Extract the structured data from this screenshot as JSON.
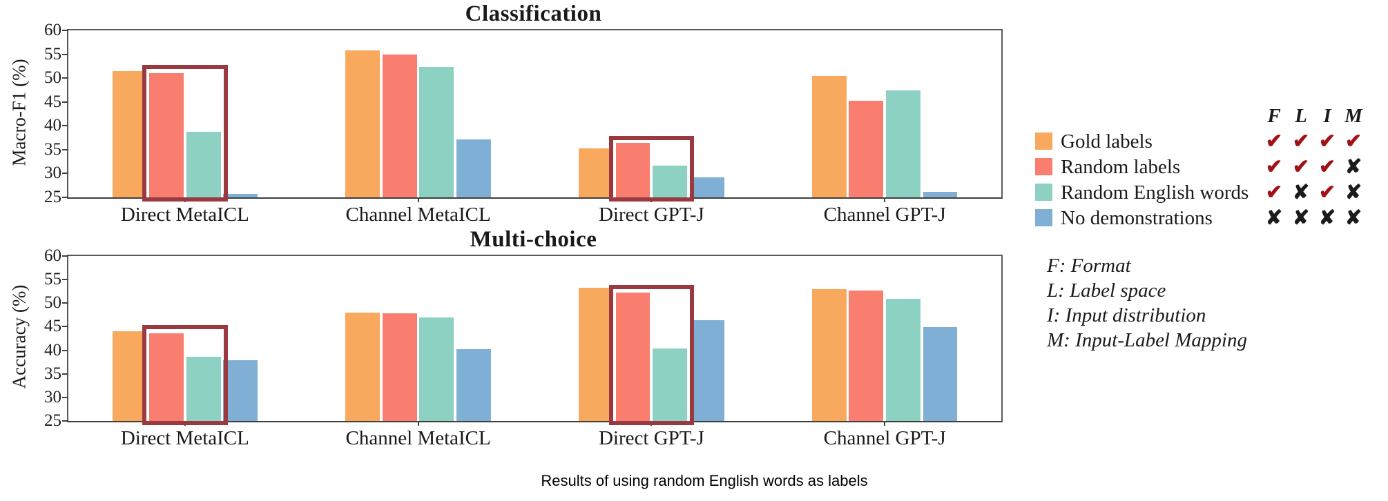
{
  "figure": {
    "caption": "Results of using random English words as labels"
  },
  "legend": {
    "columns": [
      "F",
      "L",
      "I",
      "M"
    ],
    "items": [
      {
        "label": "Gold labels",
        "color": "#F8A95E",
        "marks": [
          "check",
          "check",
          "check",
          "check"
        ]
      },
      {
        "label": "Random labels",
        "color": "#F97E70",
        "marks": [
          "check",
          "check",
          "check",
          "cross"
        ]
      },
      {
        "label": "Random English words",
        "color": "#8DD1C2",
        "marks": [
          "check",
          "cross",
          "check",
          "cross"
        ]
      },
      {
        "label": "No demonstrations",
        "color": "#7FAFD5",
        "marks": [
          "cross",
          "cross",
          "cross",
          "cross"
        ]
      }
    ],
    "check_glyph": "✔",
    "cross_glyph": "✘",
    "check_color": "#A21115",
    "cross_color": "#1b1b1b",
    "notes": [
      "F: Format",
      "L: Label space",
      "I: Input distribution",
      "M: Input-Label Mapping"
    ]
  },
  "highlight_color": "#9A3940",
  "chart_data": [
    {
      "type": "bar",
      "title": "Classification",
      "ylabel": "Macro-F1 (%)",
      "ylim": [
        25,
        60
      ],
      "yticks": [
        60,
        55,
        50,
        45,
        40,
        35,
        30,
        25
      ],
      "grid": false,
      "categories": [
        "Direct MetaICL",
        "Channel MetaICL",
        "Direct GPT-J",
        "Channel GPT-J"
      ],
      "series": [
        {
          "name": "Gold labels",
          "color": "#F8A95E",
          "values": [
            51.5,
            55.8,
            35.2,
            50.5
          ]
        },
        {
          "name": "Random labels",
          "color": "#F97E70",
          "values": [
            51.0,
            54.9,
            36.4,
            45.3
          ]
        },
        {
          "name": "Random English words",
          "color": "#8DD1C2",
          "values": [
            38.7,
            52.4,
            31.6,
            47.4
          ]
        },
        {
          "name": "No demonstrations",
          "color": "#7FAFD5",
          "values": [
            25.7,
            37.1,
            29.2,
            26.2
          ]
        }
      ],
      "highlights": [
        {
          "category_index": 0,
          "series_span": [
            1,
            2
          ],
          "top_value": 52.8
        },
        {
          "category_index": 2,
          "series_span": [
            1,
            2
          ],
          "top_value": 37.8
        }
      ]
    },
    {
      "type": "bar",
      "title": "Multi-choice",
      "ylabel": "Accuracy (%)",
      "ylim": [
        25,
        60
      ],
      "yticks": [
        60,
        55,
        50,
        45,
        40,
        35,
        30,
        25
      ],
      "grid": false,
      "categories": [
        "Direct MetaICL",
        "Channel MetaICL",
        "Direct GPT-J",
        "Channel GPT-J"
      ],
      "series": [
        {
          "name": "Gold labels",
          "color": "#F8A95E",
          "values": [
            44.0,
            48.0,
            53.2,
            53.0
          ]
        },
        {
          "name": "Random labels",
          "color": "#F97E70",
          "values": [
            43.6,
            47.8,
            52.2,
            52.7
          ]
        },
        {
          "name": "Random English words",
          "color": "#8DD1C2",
          "values": [
            38.6,
            46.9,
            40.4,
            50.9
          ]
        },
        {
          "name": "No demonstrations",
          "color": "#7FAFD5",
          "values": [
            37.9,
            40.3,
            46.4,
            44.9
          ]
        }
      ],
      "highlights": [
        {
          "category_index": 0,
          "series_span": [
            1,
            2
          ],
          "top_value": 45.3
        },
        {
          "category_index": 2,
          "series_span": [
            1,
            2
          ],
          "top_value": 53.8
        }
      ]
    }
  ]
}
